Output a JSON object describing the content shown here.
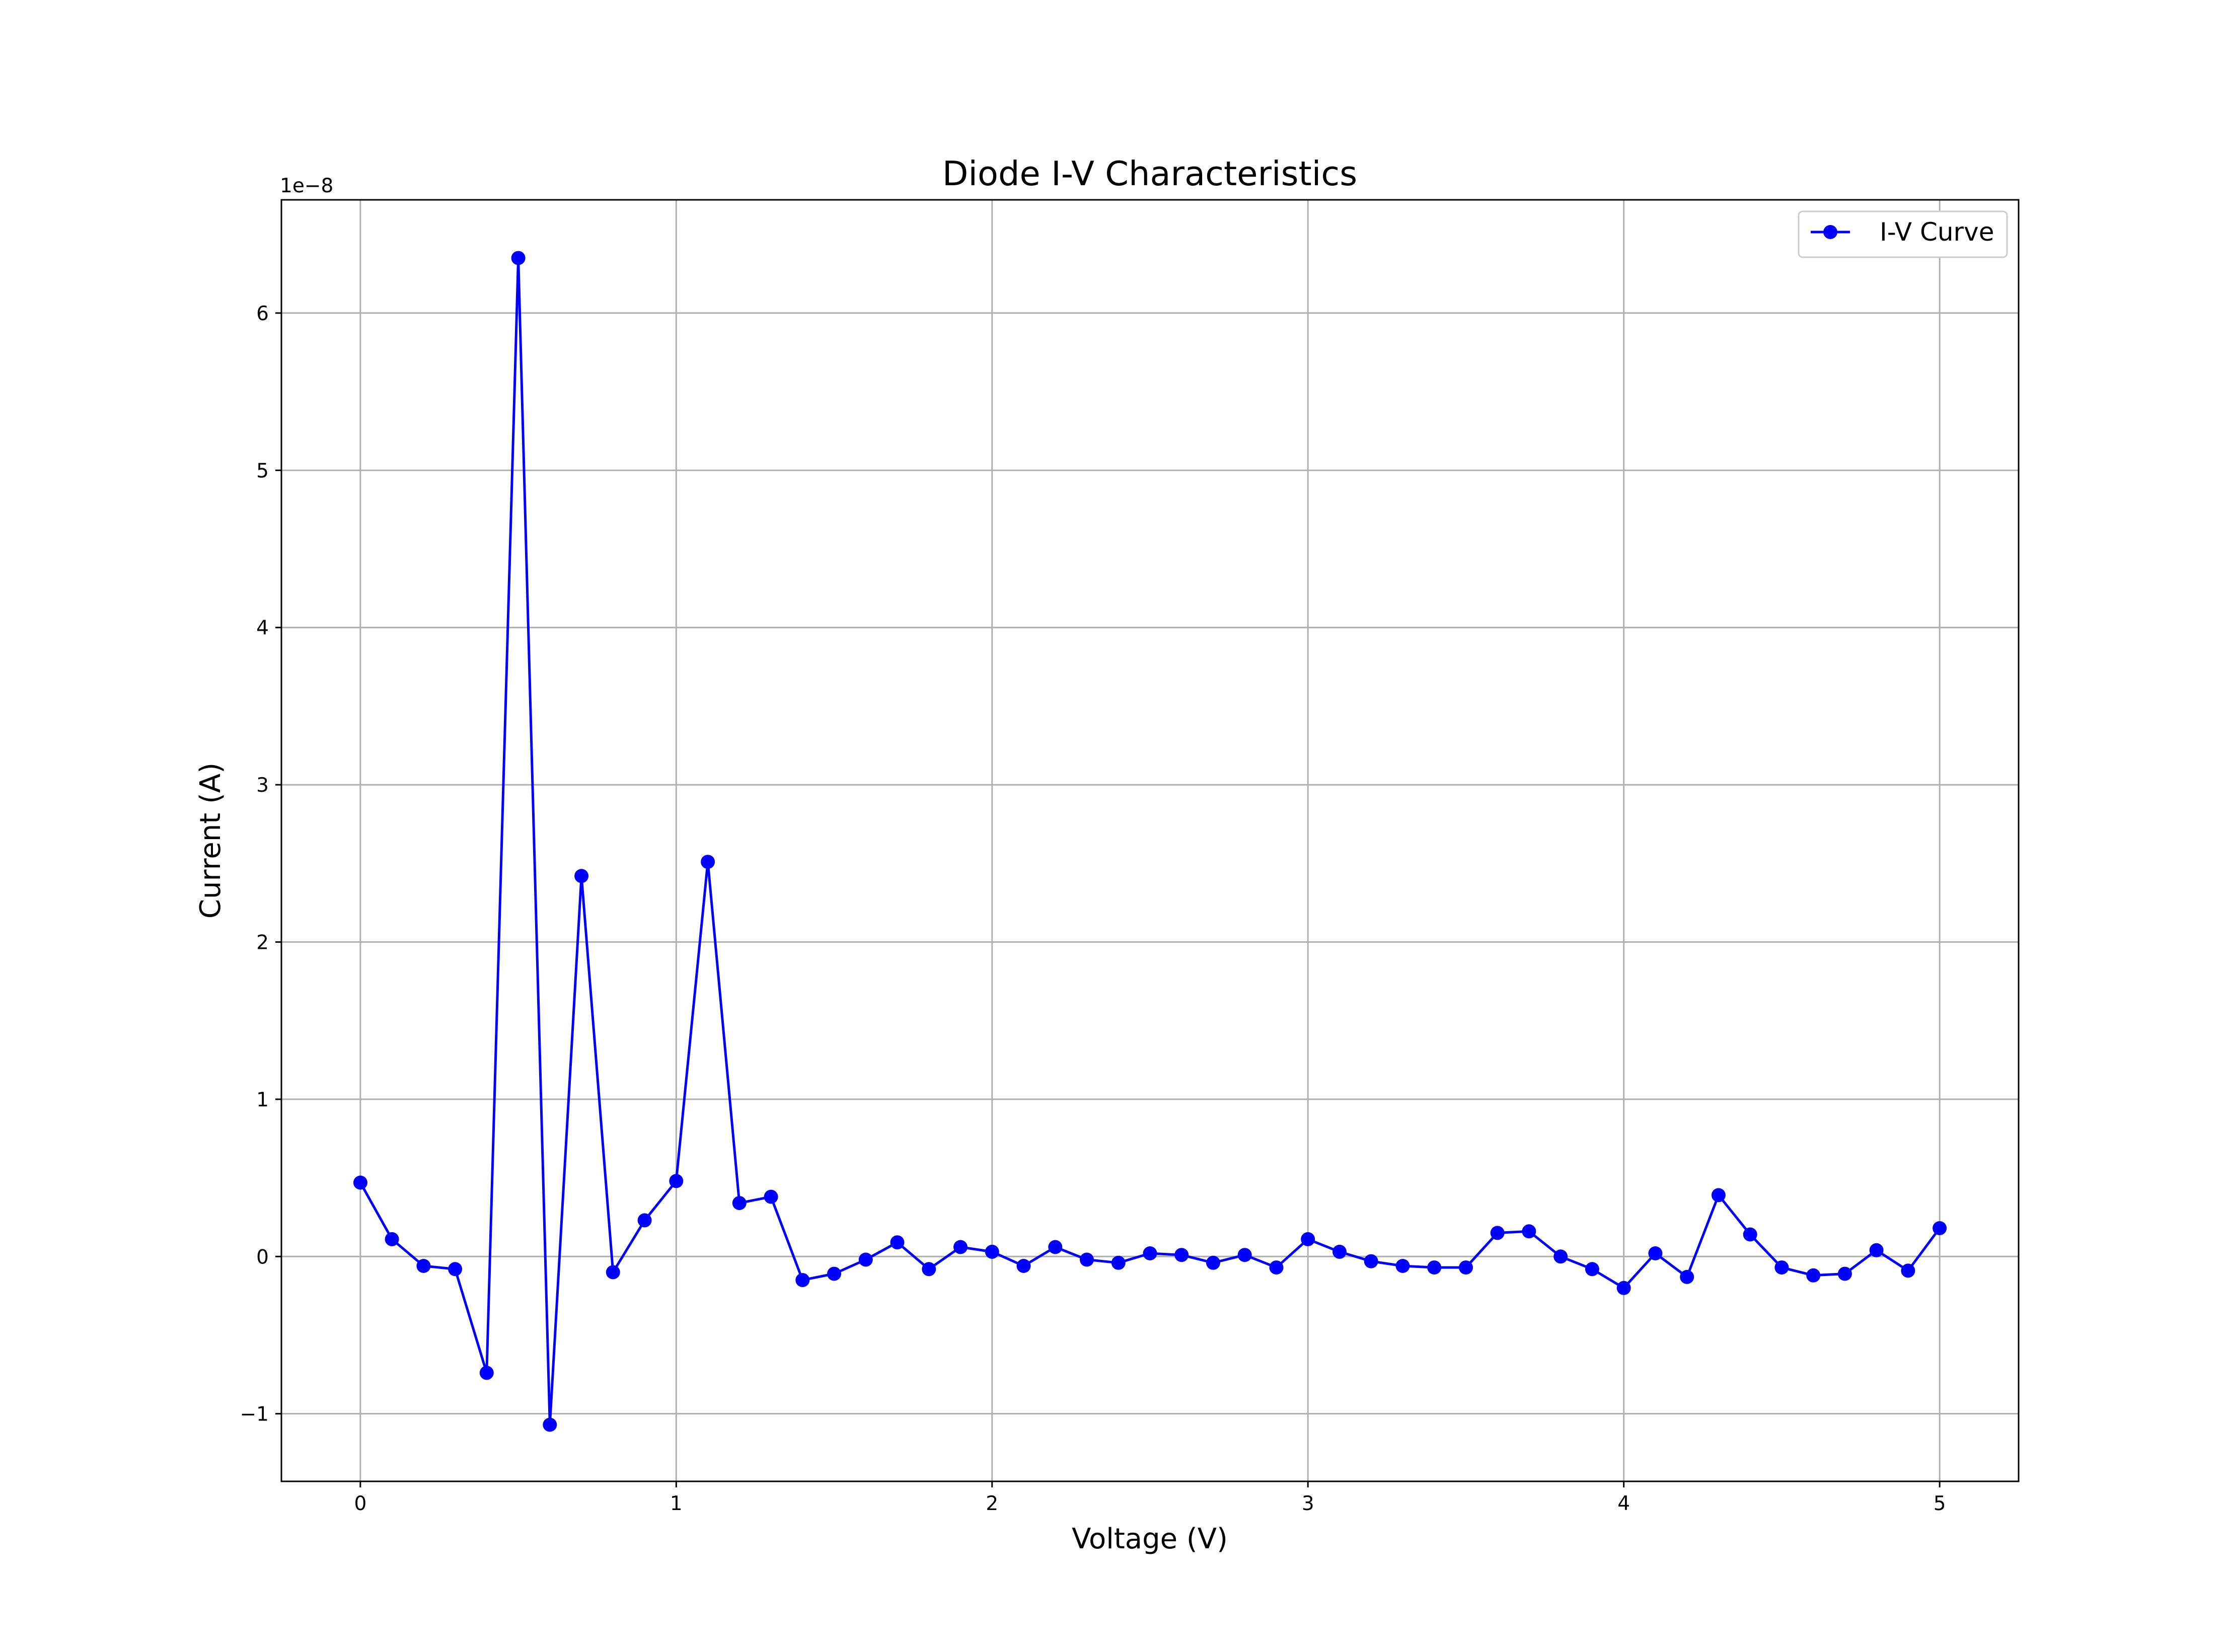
{
  "chart_data": {
    "type": "line",
    "title": "Diode I-V Characteristics",
    "xlabel": "Voltage (V)",
    "ylabel": "Current (A)",
    "y_offset_text": "1e−8",
    "xlim": [
      -0.25,
      5.25
    ],
    "ylim": [
      -1.43,
      6.72
    ],
    "xticks": [
      0,
      1,
      2,
      3,
      4,
      5
    ],
    "xtick_labels": [
      "0",
      "1",
      "2",
      "3",
      "4",
      "5"
    ],
    "yticks": [
      -1,
      0,
      1,
      2,
      3,
      4,
      5,
      6
    ],
    "ytick_labels": [
      "−1",
      "0",
      "1",
      "2",
      "3",
      "4",
      "5",
      "6"
    ],
    "grid": true,
    "legend_position": "top-right",
    "series": [
      {
        "name": "I-V Curve",
        "color": "#0000ff",
        "marker": "circle",
        "x": [
          0.0,
          0.1,
          0.2,
          0.3,
          0.4,
          0.5,
          0.6,
          0.7,
          0.8,
          0.9,
          1.0,
          1.1,
          1.2,
          1.3,
          1.4,
          1.5,
          1.6,
          1.7,
          1.8,
          1.9,
          2.0,
          2.1,
          2.2,
          2.3,
          2.4,
          2.5,
          2.6,
          2.7,
          2.8,
          2.9,
          3.0,
          3.1,
          3.2,
          3.3,
          3.4,
          3.5,
          3.6,
          3.7,
          3.8,
          3.9,
          4.0,
          4.1,
          4.2,
          4.3,
          4.4,
          4.5,
          4.6,
          4.7,
          4.8,
          4.9,
          5.0
        ],
        "y": [
          0.47,
          0.11,
          -0.06,
          -0.08,
          -0.74,
          6.35,
          -1.07,
          2.42,
          -0.1,
          0.23,
          0.48,
          2.51,
          0.34,
          0.38,
          -0.15,
          -0.11,
          -0.02,
          0.09,
          -0.08,
          0.06,
          0.03,
          -0.06,
          0.06,
          -0.02,
          -0.04,
          0.02,
          0.01,
          -0.04,
          0.01,
          -0.07,
          0.11,
          0.03,
          -0.03,
          -0.06,
          -0.07,
          -0.07,
          0.15,
          0.16,
          0.0,
          -0.08,
          -0.2,
          0.02,
          -0.13,
          0.39,
          0.14,
          -0.07,
          -0.12,
          -0.11,
          0.04,
          -0.09,
          0.18
        ]
      }
    ]
  }
}
